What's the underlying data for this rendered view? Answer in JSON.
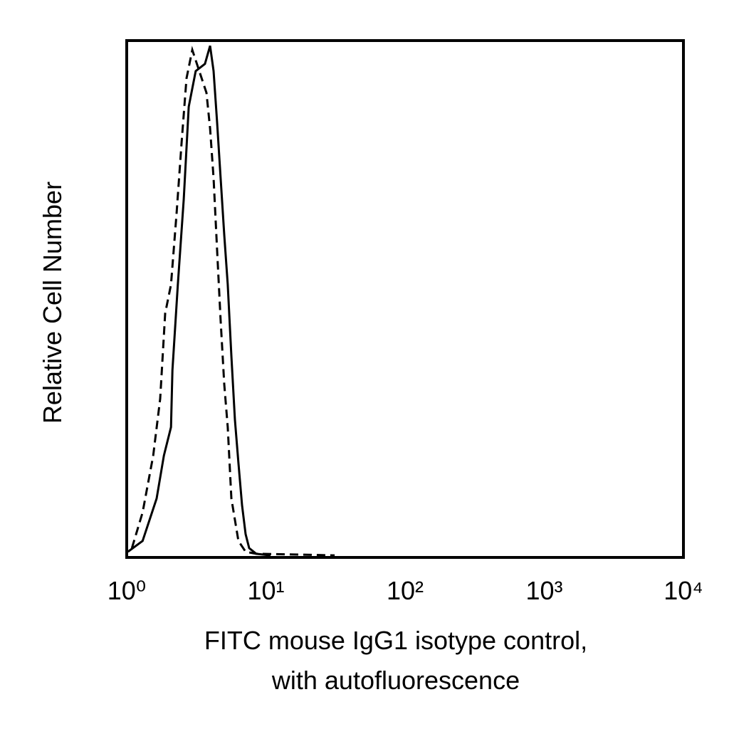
{
  "chart_data": {
    "type": "line",
    "x_label": [
      "FITC mouse IgG1 isotype control,",
      "with autofluorescence"
    ],
    "y_label": "Relative Cell Number",
    "x_scale": "log",
    "xlim": [
      1,
      10000
    ],
    "xticks": [
      {
        "value": 1,
        "label": "10⁰"
      },
      {
        "value": 10,
        "label": "10¹"
      },
      {
        "value": 100,
        "label": "10²"
      },
      {
        "value": 1000,
        "label": "10³"
      },
      {
        "value": 10000,
        "label": "10⁴"
      }
    ],
    "ylim": [
      0,
      100
    ],
    "series": [
      {
        "color": "#000000",
        "line_style": "solid",
        "x": [
          1.02,
          1.3,
          1.64,
          1.85,
          2.08,
          2.13,
          2.33,
          2.57,
          2.79,
          3.13,
          3.65,
          3.97,
          4.21,
          4.46,
          4.73,
          5.02,
          5.32,
          5.65,
          5.99,
          6.35,
          6.74,
          7.15,
          7.58,
          8.53,
          10.8
        ],
        "values": [
          1.1,
          3.2,
          11.4,
          19.7,
          25.2,
          36.2,
          52.8,
          69.3,
          87.2,
          94.1,
          95.5,
          99,
          94.1,
          84.3,
          73.4,
          62.4,
          52.8,
          39.0,
          26.6,
          18.3,
          10.1,
          4.5,
          1.8,
          0.7,
          0.4
        ]
      },
      {
        "color": "#000000",
        "line_style": "dashed",
        "x": [
          1.09,
          1.3,
          1.55,
          1.74,
          1.89,
          2.08,
          2.28,
          2.48,
          2.69,
          2.96,
          3.32,
          3.74,
          3.97,
          4.21,
          4.46,
          4.73,
          5.02,
          5.32,
          5.65,
          6.35,
          7.15,
          8.53,
          13.7,
          31.2
        ],
        "values": [
          1.8,
          8.7,
          19.7,
          30.7,
          47.2,
          52.8,
          66.5,
          80.3,
          92.7,
          98.2,
          94.1,
          89.9,
          83.0,
          73.4,
          59.6,
          45.9,
          33.5,
          25.2,
          11.4,
          3.2,
          1.1,
          0.7,
          0.6,
          0.4
        ]
      }
    ]
  }
}
